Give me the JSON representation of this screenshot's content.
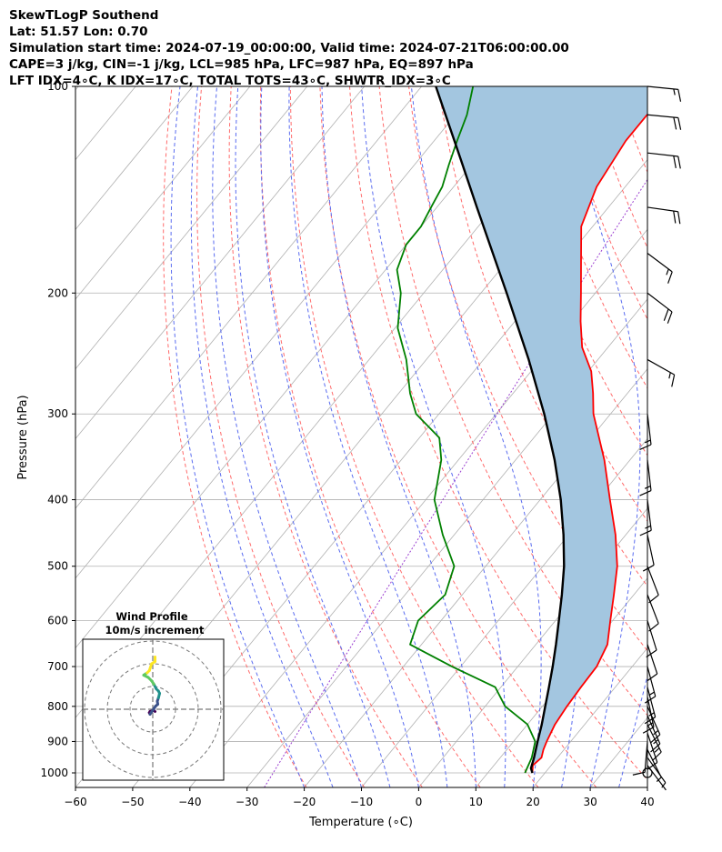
{
  "header": {
    "title": "SkewTLogP Southend",
    "location": "Lat: 51.57   Lon: 0.70",
    "times": "Simulation start time: 2024-07-19_00:00:00, Valid time: 2024-07-21T06:00:00.00",
    "indices1": "CAPE=3 j/kg, CIN=-1 j/kg, LCL=985 hPa, LFC=987 hPa, EQ=897 hPa",
    "indices2": "LFT IDX=4∘C, K IDX=17∘C, TOTAL TOTS=43∘C, SHWTR_IDX=3∘C"
  },
  "colors": {
    "temperature": "#ff0000",
    "dewpoint": "#008000",
    "parcel": "#000000",
    "cape_fill": "#a3c6e0",
    "dry_adiabat": "#ff6b6b",
    "moist_adiabat": "#5a6cf0",
    "mixing_ratio": "#9b3fd0",
    "isotherm": "#b0b0b0",
    "isobar": "#b0b0b0",
    "barb": "#000000"
  },
  "chart_data": [
    {
      "type": "line",
      "subtype": "skew-t log-p",
      "xlabel": "Temperature (∘C)",
      "ylabel": "Pressure (hPa)",
      "xlim": [
        -60,
        40
      ],
      "ylim": [
        1050,
        100
      ],
      "y_scale": "log",
      "xticks": [
        -60,
        -50,
        -40,
        -30,
        -20,
        -10,
        0,
        10,
        20,
        30,
        40
      ],
      "xtick_labels": [
        "−60",
        "−50",
        "−40",
        "−30",
        "−20",
        "−10",
        "0",
        "10",
        "20",
        "30",
        "40"
      ],
      "yticks": [
        100,
        200,
        300,
        400,
        500,
        600,
        700,
        800,
        900,
        1000
      ],
      "yticks_labels": [
        "100",
        "200",
        "300",
        "400",
        "500",
        "600",
        "700",
        "800",
        "900",
        "1000"
      ],
      "grid": true,
      "series": [
        {
          "role": "temperature",
          "points": [
            [
              1000,
              17.8
            ],
            [
              975,
              16.8
            ],
            [
              950,
              17.2
            ],
            [
              925,
              16.4
            ],
            [
              900,
              15.8
            ],
            [
              850,
              14.8
            ],
            [
              800,
              14.3
            ],
            [
              750,
              14.0
            ],
            [
              700,
              13.8
            ],
            [
              650,
              12.5
            ],
            [
              600,
              9.6
            ],
            [
              550,
              6.5
            ],
            [
              500,
              3.0
            ],
            [
              450,
              -1.8
            ],
            [
              400,
              -7.8
            ],
            [
              350,
              -14.5
            ],
            [
              300,
              -23.0
            ],
            [
              280,
              -26.0
            ],
            [
              260,
              -29.5
            ],
            [
              240,
              -34.5
            ],
            [
              220,
              -38.5
            ],
            [
              200,
              -42.5
            ],
            [
              180,
              -47.0
            ],
            [
              160,
              -52.0
            ],
            [
              140,
              -55.0
            ],
            [
              120,
              -56.5
            ],
            [
              110,
              -56.5
            ],
            [
              100,
              -56.0
            ]
          ]
        },
        {
          "role": "dewpoint",
          "points": [
            [
              1000,
              16.5
            ],
            [
              975,
              16.0
            ],
            [
              950,
              15.5
            ],
            [
              900,
              13.8
            ],
            [
              850,
              10.0
            ],
            [
              800,
              3.5
            ],
            [
              750,
              -1.0
            ],
            [
              700,
              -11.5
            ],
            [
              650,
              -22.0
            ],
            [
              600,
              -24.0
            ],
            [
              550,
              -23.0
            ],
            [
              500,
              -25.5
            ],
            [
              450,
              -32.0
            ],
            [
              400,
              -38.5
            ],
            [
              350,
              -43.0
            ],
            [
              325,
              -46.5
            ],
            [
              300,
              -54.0
            ],
            [
              280,
              -58.0
            ],
            [
              250,
              -63.5
            ],
            [
              225,
              -69.5
            ],
            [
              200,
              -74.0
            ],
            [
              185,
              -78.0
            ],
            [
              170,
              -80.0
            ],
            [
              160,
              -80.0
            ],
            [
              150,
              -81.0
            ],
            [
              140,
              -82.0
            ],
            [
              130,
              -84.0
            ],
            [
              120,
              -86.0
            ],
            [
              110,
              -88.0
            ],
            [
              100,
              -91.0
            ]
          ]
        },
        {
          "role": "parcel",
          "points": [
            [
              1000,
              17.8
            ],
            [
              985,
              16.9
            ],
            [
              950,
              15.9
            ],
            [
              900,
              14.2
            ],
            [
              850,
              12.5
            ],
            [
              800,
              10.5
            ],
            [
              750,
              8.4
            ],
            [
              700,
              6.1
            ],
            [
              650,
              3.5
            ],
            [
              600,
              0.6
            ],
            [
              550,
              -2.6
            ],
            [
              500,
              -6.3
            ],
            [
              450,
              -10.9
            ],
            [
              400,
              -16.4
            ],
            [
              350,
              -23.2
            ],
            [
              300,
              -31.6
            ],
            [
              250,
              -42.1
            ],
            [
              200,
              -55.5
            ],
            [
              150,
              -73.0
            ],
            [
              125,
              -84.0
            ],
            [
              100,
              -97.5
            ]
          ]
        }
      ],
      "reference_lines": {
        "dry_adiabats_theta_K": [
          250,
          260,
          270,
          280,
          290,
          300,
          310,
          320,
          330,
          340,
          350,
          360,
          370,
          380,
          390,
          400,
          410,
          420,
          430,
          440,
          450,
          460
        ],
        "moist_adiabats_start_C": [
          -20,
          -15,
          -10,
          -5,
          0,
          5,
          10,
          15,
          20,
          25,
          30,
          35,
          40
        ],
        "mixing_ratios_g_kg": [
          0.4
        ]
      },
      "wind_barbs": [
        {
          "p": 1000,
          "calm": true
        },
        {
          "p": 975,
          "u": -1.5,
          "v": 2.0
        },
        {
          "p": 950,
          "u": -1.8,
          "v": 2.5
        },
        {
          "p": 925,
          "u": -1.5,
          "v": 3.0
        },
        {
          "p": 900,
          "u": 0.5,
          "v": 6.0
        },
        {
          "p": 875,
          "u": -2.0,
          "v": 6.0
        },
        {
          "p": 850,
          "u": -4.0,
          "v": 8.0
        },
        {
          "p": 825,
          "u": -4.0,
          "v": 9.0
        },
        {
          "p": 800,
          "u": -4.0,
          "v": 9.0
        },
        {
          "p": 775,
          "u": -2.0,
          "v": 9.5
        },
        {
          "p": 750,
          "u": -2.5,
          "v": 9.5
        },
        {
          "p": 700,
          "u": -2.0,
          "v": 7.5
        },
        {
          "p": 650,
          "u": -2.0,
          "v": 6.0
        },
        {
          "p": 600,
          "u": -2.0,
          "v": 6.5
        },
        {
          "p": 550,
          "u": -2.5,
          "v": 6.5
        },
        {
          "p": 500,
          "u": -2.5,
          "v": 6.5
        },
        {
          "p": 450,
          "u": -1.5,
          "v": 7.0
        },
        {
          "p": 400,
          "u": -1.0,
          "v": 8.0
        },
        {
          "p": 350,
          "u": -1.0,
          "v": 8.5
        },
        {
          "p": 300,
          "u": -1.0,
          "v": 8.5
        },
        {
          "p": 250,
          "u": -8.0,
          "v": 4.5
        },
        {
          "p": 200,
          "u": -8.5,
          "v": 6.5
        },
        {
          "p": 175,
          "u": -8.0,
          "v": 6.0
        },
        {
          "p": 150,
          "u": -10.5,
          "v": 1.5
        },
        {
          "p": 125,
          "u": -10.5,
          "v": 1.2
        },
        {
          "p": 110,
          "u": -10.5,
          "v": 1.0
        },
        {
          "p": 100,
          "u": -10.0,
          "v": 1.0
        }
      ]
    },
    {
      "type": "line",
      "subtype": "hodograph",
      "title": "Wind Profile",
      "subtitle": "10m/s increment",
      "rings_m_s": [
        10,
        20,
        30
      ],
      "series": [
        {
          "role": "hodograph",
          "u": [
            1.0,
            0.5,
            -1.2,
            -1.5,
            -1.2,
            1.2,
            2.2,
            2.0,
            2.5,
            3.0,
            2.5,
            1.5,
            0.5,
            -0.5,
            -2.0,
            -4.0,
            -2.5,
            -1.5,
            -0.5,
            1.0,
            1.0
          ],
          "v": [
            1.0,
            0.5,
            1.0,
            1.5,
            2.2,
            -1.3,
            -2.2,
            -3.5,
            -5.0,
            -7.0,
            -8.0,
            -9.0,
            -11.0,
            -12.5,
            -14.0,
            -15.0,
            -16.0,
            -17.0,
            -20.0,
            -21.0,
            -23.0
          ]
        }
      ]
    }
  ]
}
